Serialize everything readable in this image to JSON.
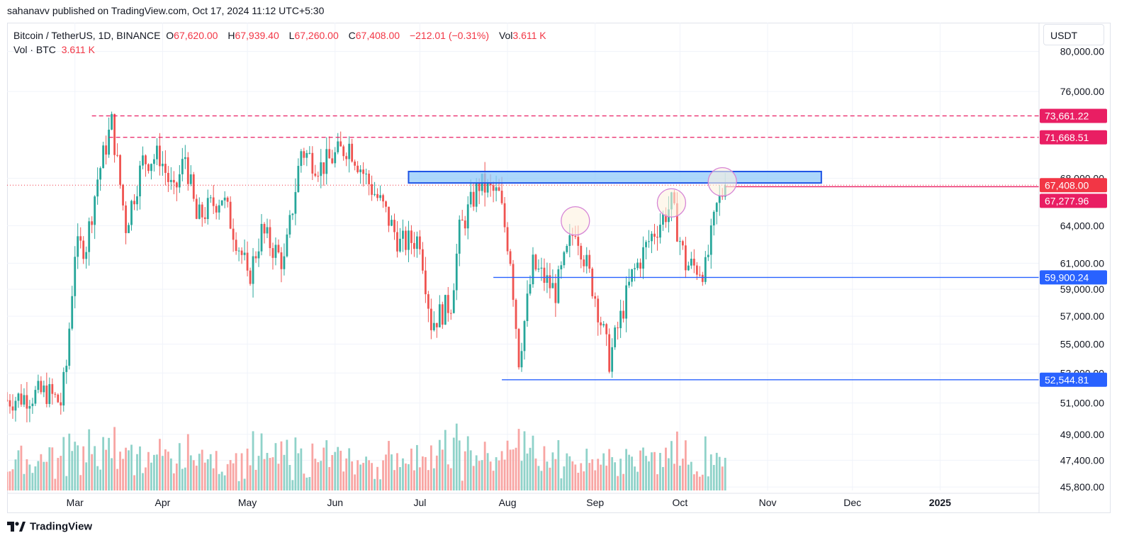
{
  "header": {
    "publish_line": "sahanavv published on TradingView.com, Oct 17, 2024 11:12 UTC+5:30"
  },
  "legend": {
    "symbol": "Bitcoin / TetherUS, 1D, BINANCE",
    "o_label": "O",
    "o_value": "67,620.00",
    "h_label": "H",
    "h_value": "67,939.40",
    "l_label": "L",
    "l_value": "67,260.00",
    "c_label": "C",
    "c_value": "67,408.00",
    "change": "−212.01 (−0.31%)",
    "vol_label": "Vol",
    "vol_value": "3.611 K",
    "vol_row_label": "Vol · BTC",
    "vol_row_value": "3.611 K"
  },
  "currency_button": "USDT",
  "footer": {
    "brand": "TradingView"
  },
  "colors": {
    "up": "#26a69a",
    "down": "#ef5350",
    "up_volume": "#8fd2c9",
    "down_volume": "#f8a5a3",
    "dashed_resistance": "#e91e63",
    "support_line": "#2962ff",
    "zone_fill": "#90caf9",
    "zone_border": "#1e53e5",
    "circle": "#d685d6"
  },
  "chart_data": {
    "type": "candlestick",
    "title": "Bitcoin / TetherUS, 1D, BINANCE",
    "y_scale": "log",
    "ylim": [
      45600,
      83000
    ],
    "x_range": [
      "2024-02-06",
      "2025-02-05"
    ],
    "y_tick_labels": [
      "80,000.00",
      "76,000.00",
      "68,000.00",
      "64,000.00",
      "61,000.00",
      "59,000.00",
      "57,000.00",
      "55,000.00",
      "53,000.00",
      "51,000.00",
      "49,000.00",
      "47,400.00",
      "45,800.00"
    ],
    "x_tick_labels": [
      {
        "date": "2024-03-01",
        "label": "Mar"
      },
      {
        "date": "2024-04-01",
        "label": "Apr"
      },
      {
        "date": "2024-05-01",
        "label": "May"
      },
      {
        "date": "2024-06-01",
        "label": "Jun"
      },
      {
        "date": "2024-07-01",
        "label": "Jul"
      },
      {
        "date": "2024-08-01",
        "label": "Aug"
      },
      {
        "date": "2024-09-01",
        "label": "Sep"
      },
      {
        "date": "2024-10-01",
        "label": "Oct"
      },
      {
        "date": "2024-11-01",
        "label": "Nov"
      },
      {
        "date": "2024-12-01",
        "label": "Dec"
      },
      {
        "date": "2025-01-01",
        "label": "2025"
      }
    ],
    "price_labels": [
      {
        "value": 73661.22,
        "text": "73,661.22",
        "color": "#e91e63"
      },
      {
        "value": 71668.51,
        "text": "71,668.51",
        "color": "#e91e63"
      },
      {
        "value": 67408.0,
        "text": "67,408.00",
        "color": "#f23645"
      },
      {
        "value": 67277.96,
        "text": "67,277.96",
        "color": "#e91e63"
      },
      {
        "value": 59900.24,
        "text": "59,900.24",
        "color": "#2962ff"
      },
      {
        "value": 52544.81,
        "text": "52,544.81",
        "color": "#2962ff"
      }
    ],
    "horizontal_lines": [
      {
        "value": 73661.22,
        "from": "2024-03-07",
        "style": "dashed",
        "color": "#e91e63"
      },
      {
        "value": 71668.51,
        "from": "2024-03-13",
        "style": "dashed",
        "color": "#e91e63"
      },
      {
        "value": 67408.0,
        "from": "2024-02-06",
        "style": "dotted",
        "color": "#f23645"
      },
      {
        "value": 67277.96,
        "from": "2024-10-17",
        "style": "solid",
        "color": "#e91e63"
      },
      {
        "value": 59900.24,
        "from": "2024-07-27",
        "style": "solid",
        "color": "#2962ff"
      },
      {
        "value": 52544.81,
        "from": "2024-07-30",
        "style": "solid",
        "color": "#2962ff"
      }
    ],
    "zone": {
      "from": "2024-06-27",
      "to": "2024-11-20",
      "low": 67600,
      "high": 68600
    },
    "circles": [
      {
        "date": "2024-08-25",
        "value": 64400
      },
      {
        "date": "2024-09-28",
        "value": 65900
      },
      {
        "date": "2024-10-16",
        "value": 67700
      }
    ],
    "daily_closes": [
      {
        "date": "2024-02-06",
        "close": 51200
      },
      {
        "date": "2024-02-20",
        "close": 51700
      },
      {
        "date": "2024-02-25",
        "close": 51000
      },
      {
        "date": "2024-02-27",
        "close": 53500
      },
      {
        "date": "2024-03-01",
        "close": 62000
      },
      {
        "date": "2024-03-05",
        "close": 62500
      },
      {
        "date": "2024-03-09",
        "close": 68000
      },
      {
        "date": "2024-03-14",
        "close": 73000
      },
      {
        "date": "2024-03-19",
        "close": 64000
      },
      {
        "date": "2024-03-25",
        "close": 69500
      },
      {
        "date": "2024-03-31",
        "close": 70000
      },
      {
        "date": "2024-04-05",
        "close": 66500
      },
      {
        "date": "2024-04-09",
        "close": 70000
      },
      {
        "date": "2024-04-13",
        "close": 64500
      },
      {
        "date": "2024-04-22",
        "close": 66500
      },
      {
        "date": "2024-04-30",
        "close": 61000
      },
      {
        "date": "2024-05-01",
        "close": 59500
      },
      {
        "date": "2024-05-06",
        "close": 63500
      },
      {
        "date": "2024-05-14",
        "close": 61000
      },
      {
        "date": "2024-05-20",
        "close": 70500
      },
      {
        "date": "2024-05-27",
        "close": 69000
      },
      {
        "date": "2024-06-06",
        "close": 71000
      },
      {
        "date": "2024-06-12",
        "close": 68000
      },
      {
        "date": "2024-06-18",
        "close": 65500
      },
      {
        "date": "2024-06-24",
        "close": 62500
      },
      {
        "date": "2024-07-01",
        "close": 63000
      },
      {
        "date": "2024-07-05",
        "close": 56500
      },
      {
        "date": "2024-07-12",
        "close": 58000
      },
      {
        "date": "2024-07-15",
        "close": 63500
      },
      {
        "date": "2024-07-22",
        "close": 67500
      },
      {
        "date": "2024-07-29",
        "close": 66500
      },
      {
        "date": "2024-08-02",
        "close": 61500
      },
      {
        "date": "2024-08-05",
        "close": 54000
      },
      {
        "date": "2024-08-10",
        "close": 60800
      },
      {
        "date": "2024-08-18",
        "close": 58800
      },
      {
        "date": "2024-08-25",
        "close": 64000
      },
      {
        "date": "2024-09-01",
        "close": 58500
      },
      {
        "date": "2024-09-06",
        "close": 53900
      },
      {
        "date": "2024-09-14",
        "close": 60000
      },
      {
        "date": "2024-09-21",
        "close": 63200
      },
      {
        "date": "2024-09-28",
        "close": 65800
      },
      {
        "date": "2024-10-03",
        "close": 60900
      },
      {
        "date": "2024-10-10",
        "close": 60500
      },
      {
        "date": "2024-10-14",
        "close": 65500
      },
      {
        "date": "2024-10-17",
        "close": 67408
      }
    ]
  }
}
